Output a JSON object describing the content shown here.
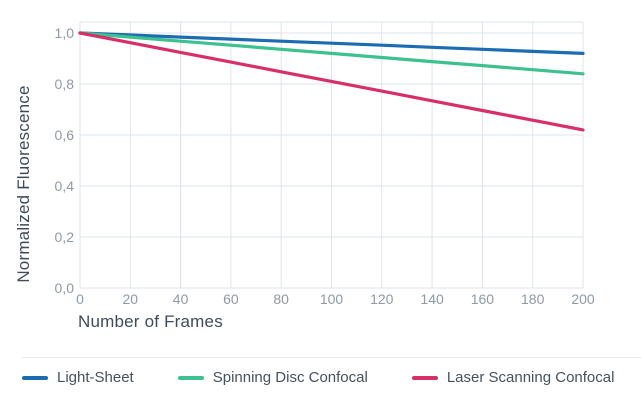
{
  "chart_data": {
    "type": "line",
    "title": "",
    "xlabel": "Number of Frames",
    "ylabel": "Normalized Fluorescence",
    "x": [
      0,
      20,
      40,
      60,
      80,
      100,
      120,
      140,
      160,
      180,
      200
    ],
    "x_tick_labels": [
      "0",
      "20",
      "40",
      "60",
      "80",
      "100",
      "120",
      "140",
      "160",
      "180",
      "200"
    ],
    "y_tick_values": [
      0.0,
      0.2,
      0.4,
      0.6,
      0.8,
      1.0
    ],
    "y_tick_labels": [
      "0,0",
      "0,2",
      "0,4",
      "0,6",
      "0,8",
      "1,0"
    ],
    "decimal_separator": ",",
    "xlim": [
      0,
      200
    ],
    "ylim": [
      0,
      1.04
    ],
    "grid": true,
    "legend_position": "bottom",
    "series": [
      {
        "name": "Light-Sheet",
        "color": "#1b6cb3",
        "values": [
          1.0,
          0.992,
          0.984,
          0.976,
          0.968,
          0.96,
          0.952,
          0.944,
          0.936,
          0.928,
          0.92
        ]
      },
      {
        "name": "Spinning Disc Confocal",
        "color": "#3cc18f",
        "values": [
          1.0,
          0.984,
          0.968,
          0.952,
          0.936,
          0.92,
          0.904,
          0.888,
          0.872,
          0.856,
          0.84
        ]
      },
      {
        "name": "Laser Scanning Confocal",
        "color": "#d92f68",
        "values": [
          1.0,
          0.962,
          0.924,
          0.886,
          0.848,
          0.81,
          0.772,
          0.734,
          0.696,
          0.658,
          0.62
        ]
      }
    ]
  },
  "colors": {
    "background": "#ffffff",
    "gridline": "#dde4eb",
    "tick_label": "#8f9aa6",
    "axis_title": "#3e4b5b",
    "legend_text": "#46525f",
    "divider": "#ededed"
  }
}
